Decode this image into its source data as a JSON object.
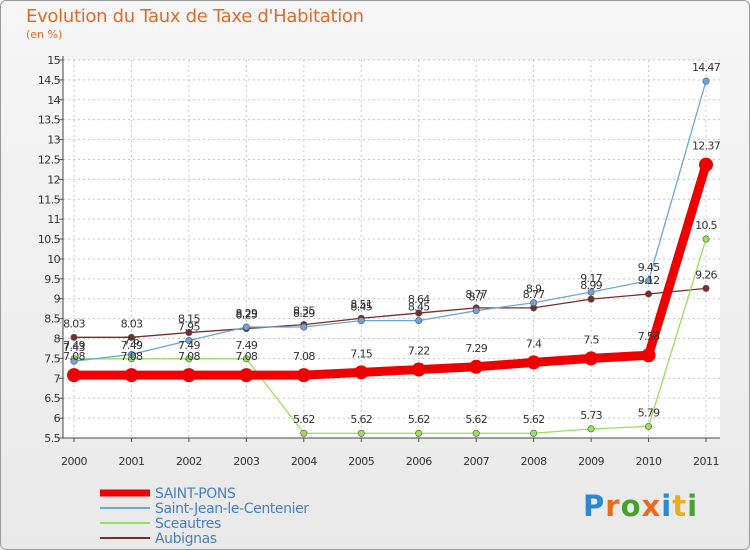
{
  "chart_data": {
    "type": "line",
    "title": "Evolution du Taux de Taxe d'Habitation",
    "subtitle": "(en %)",
    "x": [
      "2000",
      "2001",
      "2002",
      "2003",
      "2004",
      "2005",
      "2006",
      "2007",
      "2008",
      "2009",
      "2010",
      "2011"
    ],
    "ylim": [
      5.5,
      15
    ],
    "yticks": [
      "5.5",
      "6",
      "6.5",
      "7",
      "7.5",
      "8",
      "8.5",
      "9",
      "9.5",
      "10",
      "10.5",
      "11",
      "11.5",
      "12",
      "12.5",
      "13",
      "13.5",
      "14",
      "14.5",
      "15"
    ],
    "grid": true,
    "legend_position": "bottom-left",
    "series": [
      {
        "name": "SAINT-PONS",
        "color": "#ee0000",
        "width": 9,
        "marker": 7,
        "values": [
          7.08,
          7.08,
          7.08,
          7.08,
          7.08,
          7.15,
          7.22,
          7.29,
          7.4,
          7.5,
          7.58,
          12.37
        ],
        "labels": [
          "7.08",
          "7.08",
          "7.08",
          "7.08",
          "7.08",
          "7.15",
          "7.22",
          "7.29",
          "7.4",
          "7.5",
          "7.58",
          "12.37"
        ]
      },
      {
        "name": "Saint-Jean-le-Centenier",
        "color": "#6ea5d8",
        "width": 1.3,
        "marker": 3.2,
        "values": [
          7.43,
          7.6,
          7.95,
          8.29,
          8.29,
          8.45,
          8.45,
          8.7,
          8.9,
          9.17,
          9.45,
          14.47
        ],
        "labels": [
          "7.43",
          "7.6",
          "7.95",
          "8.29",
          "8.29",
          "8.45",
          "8.45",
          "8.7",
          "8.9",
          "9.17",
          "9.45",
          "14.47"
        ]
      },
      {
        "name": "Sceautres",
        "color": "#99e05a",
        "width": 1.3,
        "marker": 3.2,
        "values": [
          7.49,
          7.49,
          7.49,
          7.49,
          5.62,
          5.62,
          5.62,
          5.62,
          5.62,
          5.73,
          5.79,
          10.5
        ],
        "labels": [
          "7.49",
          "7.49",
          "7.49",
          "7.49",
          "5.62",
          "5.62",
          "5.62",
          "5.62",
          "5.62",
          "5.73",
          "5.79",
          "10.5"
        ]
      },
      {
        "name": "Aubignas",
        "color": "#7a2d2d",
        "width": 1.3,
        "marker": 3.2,
        "values": [
          8.03,
          8.03,
          8.15,
          8.25,
          8.35,
          8.51,
          8.64,
          8.77,
          8.77,
          8.99,
          9.12,
          9.26
        ],
        "labels": [
          "8.03",
          "8.03",
          "8.15",
          "8.25",
          "8.35",
          "8.51",
          "8.64",
          "8.77",
          "8.77",
          "8.99",
          "9.12",
          "9.26"
        ]
      }
    ]
  },
  "branding": {
    "logo_letters": [
      "P",
      "r",
      "o",
      "x",
      "i",
      "t",
      "i"
    ],
    "logo_colors": [
      "#2e88cf",
      "#e86b1f",
      "#47a12d",
      "#e86b1f",
      "#2e88cf",
      "#e7b01a",
      "#47a12d"
    ]
  }
}
